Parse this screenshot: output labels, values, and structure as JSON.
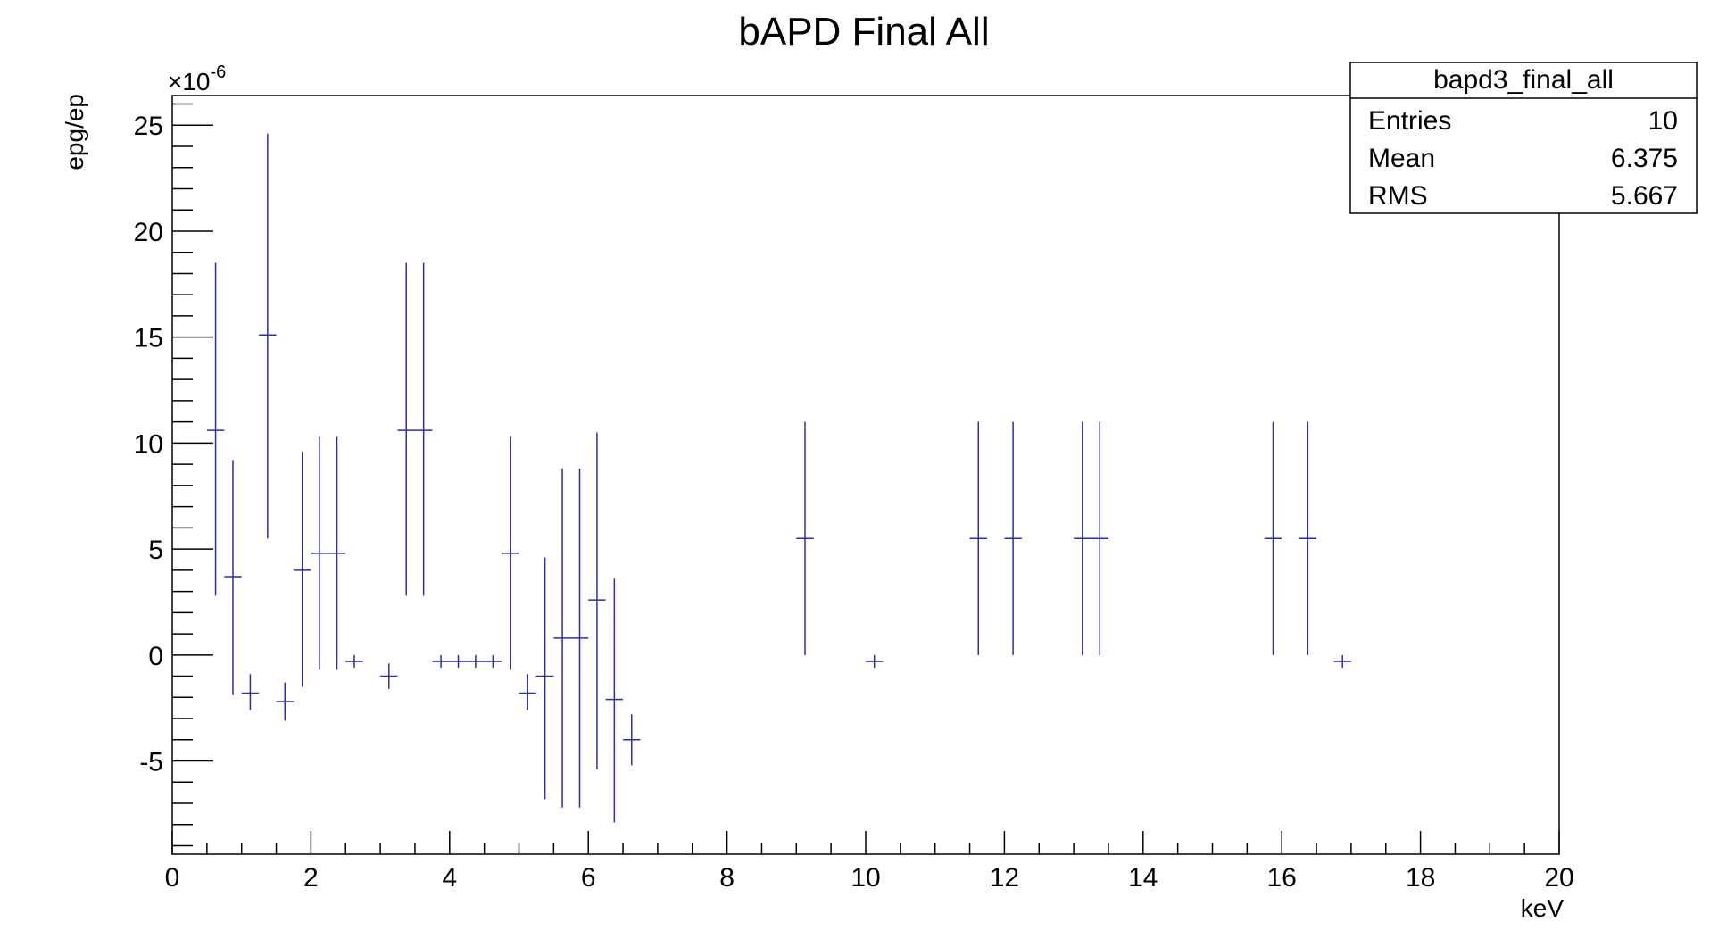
{
  "chart_data": {
    "type": "scatter",
    "title": "bAPD Final All",
    "xlabel": "keV",
    "ylabel": "epg/ep",
    "y_multiplier_label": "×10",
    "y_multiplier_exp": "-6",
    "xlim": [
      0,
      20
    ],
    "ylim": [
      -9.4,
      26.4
    ],
    "x_ticks": [
      0,
      2,
      4,
      6,
      8,
      10,
      12,
      14,
      16,
      18,
      20
    ],
    "y_ticks": [
      -5,
      0,
      5,
      10,
      15,
      20,
      25
    ],
    "grid": false,
    "line_color": "#2e2ea8",
    "stats_box": {
      "name": "bapd3_final_all",
      "rows": [
        {
          "label": "Entries",
          "value": "10"
        },
        {
          "label": "Mean",
          "value": "6.375"
        },
        {
          "label": "RMS",
          "value": "5.667"
        }
      ],
      "placement": "top-right"
    },
    "points": [
      {
        "x": 0.625,
        "y": 10.6,
        "ylo": 2.8,
        "yhi": 18.5
      },
      {
        "x": 0.875,
        "y": 3.7,
        "ylo": -1.9,
        "yhi": 9.2
      },
      {
        "x": 1.125,
        "y": -1.8,
        "ylo": -2.6,
        "yhi": -0.9
      },
      {
        "x": 1.375,
        "y": 15.1,
        "ylo": 5.5,
        "yhi": 24.6
      },
      {
        "x": 1.625,
        "y": -2.2,
        "ylo": -3.1,
        "yhi": -1.3
      },
      {
        "x": 1.875,
        "y": 4.0,
        "ylo": -1.5,
        "yhi": 9.6
      },
      {
        "x": 2.125,
        "y": 4.8,
        "ylo": -0.7,
        "yhi": 10.3
      },
      {
        "x": 2.375,
        "y": 4.8,
        "ylo": -0.7,
        "yhi": 10.3
      },
      {
        "x": 2.625,
        "y": -0.3,
        "ylo": -0.6,
        "yhi": 0.0
      },
      {
        "x": 3.125,
        "y": -1.0,
        "ylo": -1.6,
        "yhi": -0.4
      },
      {
        "x": 3.375,
        "y": 10.6,
        "ylo": 2.8,
        "yhi": 18.5
      },
      {
        "x": 3.625,
        "y": 10.6,
        "ylo": 2.8,
        "yhi": 18.5
      },
      {
        "x": 3.875,
        "y": -0.3,
        "ylo": -0.6,
        "yhi": 0.0
      },
      {
        "x": 4.125,
        "y": -0.3,
        "ylo": -0.6,
        "yhi": 0.0
      },
      {
        "x": 4.375,
        "y": -0.3,
        "ylo": -0.6,
        "yhi": 0.0
      },
      {
        "x": 4.625,
        "y": -0.3,
        "ylo": -0.6,
        "yhi": 0.0
      },
      {
        "x": 4.875,
        "y": 4.8,
        "ylo": -0.7,
        "yhi": 10.3
      },
      {
        "x": 5.125,
        "y": -1.8,
        "ylo": -2.6,
        "yhi": -0.9
      },
      {
        "x": 5.375,
        "y": -1.0,
        "ylo": -6.8,
        "yhi": 4.6
      },
      {
        "x": 5.625,
        "y": 0.8,
        "ylo": -7.2,
        "yhi": 8.8
      },
      {
        "x": 5.875,
        "y": 0.8,
        "ylo": -7.2,
        "yhi": 8.8
      },
      {
        "x": 6.125,
        "y": 2.6,
        "ylo": -5.4,
        "yhi": 10.5
      },
      {
        "x": 6.375,
        "y": -2.1,
        "ylo": -7.9,
        "yhi": 3.6
      },
      {
        "x": 6.625,
        "y": -4.0,
        "ylo": -5.2,
        "yhi": -2.8
      },
      {
        "x": 9.125,
        "y": 5.5,
        "ylo": 0.0,
        "yhi": 11.0
      },
      {
        "x": 10.125,
        "y": -0.3,
        "ylo": -0.6,
        "yhi": 0.0
      },
      {
        "x": 11.625,
        "y": 5.5,
        "ylo": 0.0,
        "yhi": 11.0
      },
      {
        "x": 12.125,
        "y": 5.5,
        "ylo": 0.0,
        "yhi": 11.0
      },
      {
        "x": 13.125,
        "y": 5.5,
        "ylo": 0.0,
        "yhi": 11.0
      },
      {
        "x": 13.375,
        "y": 5.5,
        "ylo": 0.0,
        "yhi": 11.0
      },
      {
        "x": 15.875,
        "y": 5.5,
        "ylo": 0.0,
        "yhi": 11.0
      },
      {
        "x": 16.375,
        "y": 5.5,
        "ylo": 0.0,
        "yhi": 11.0
      },
      {
        "x": 16.875,
        "y": -0.3,
        "ylo": -0.6,
        "yhi": 0.0
      }
    ],
    "bin_width": 0.25
  }
}
